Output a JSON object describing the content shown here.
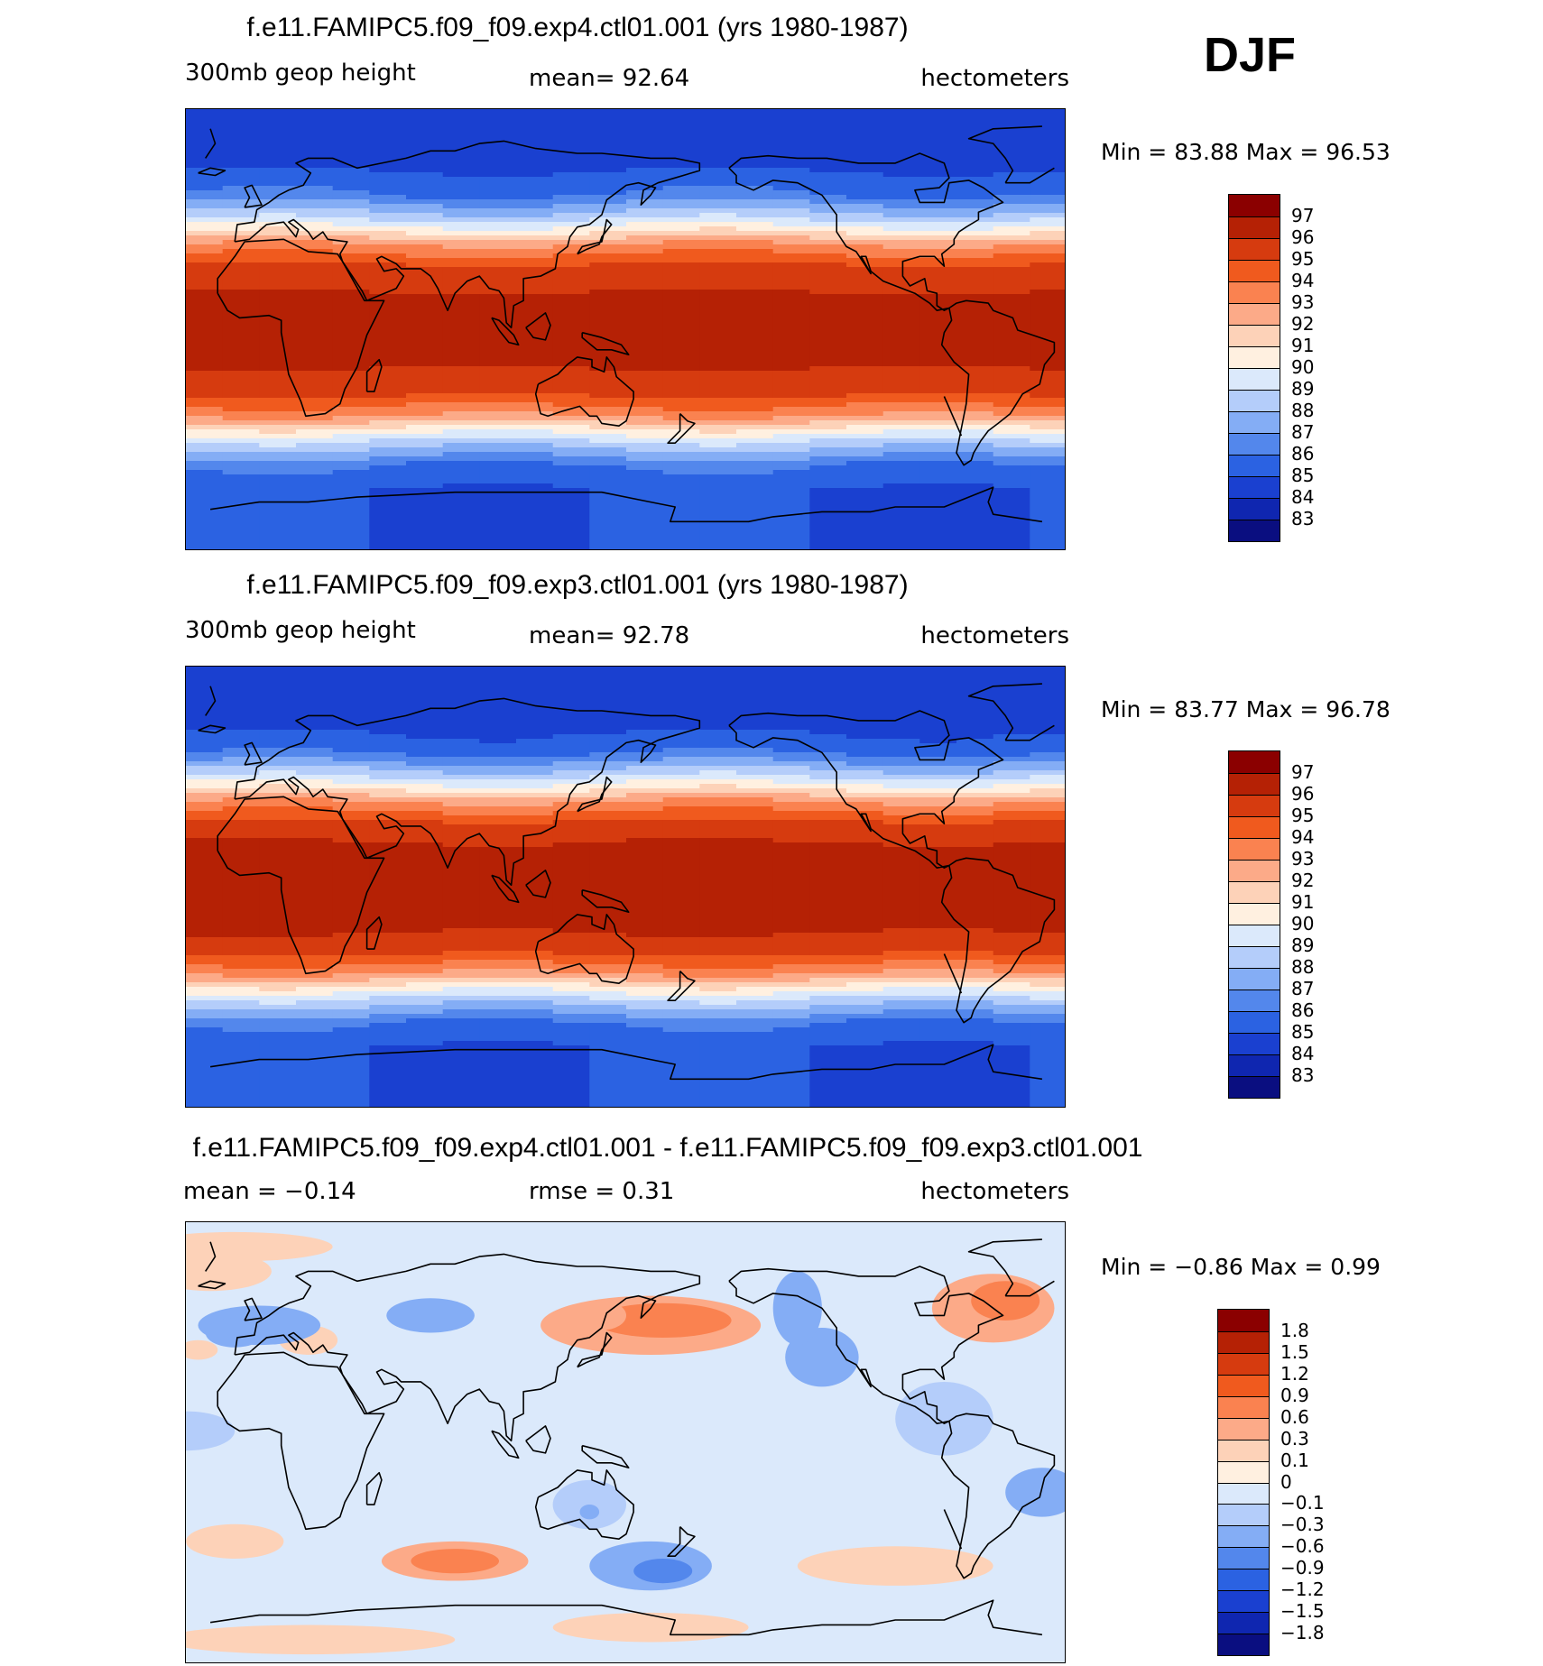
{
  "season": "DJF",
  "panels": [
    {
      "title": "f.e11.FAMIPC5.f09_f09.exp4.ctl01.001 (yrs 1980-1987)",
      "left_text": "300mb geop height",
      "center_text": "mean=   92.64",
      "units": "hectometers",
      "minmax": "Min =   83.88  Max =   96.53"
    },
    {
      "title": "f.e11.FAMIPC5.f09_f09.exp3.ctl01.001 (yrs 1980-1987)",
      "left_text": "300mb geop height",
      "center_text": "mean=   92.78",
      "units": "hectometers",
      "minmax": "Min =   83.77  Max =   96.78"
    },
    {
      "title": "f.e11.FAMIPC5.f09_f09.exp4.ctl01.001 - f.e11.FAMIPC5.f09_f09.exp3.ctl01.001",
      "left_text": "mean =   −0.14",
      "center_text": "rmse =     0.31",
      "units": "hectometers",
      "minmax": "Min =   −0.86  Max =     0.99"
    }
  ],
  "chart_data": [
    {
      "type": "heatmap",
      "title": "f.e11.FAMIPC5.f09_f09.exp4.ctl01.001 (yrs 1980-1987)",
      "variable": "300mb geop height",
      "units": "hectometers",
      "mean": 92.64,
      "min": 83.88,
      "max": 96.53,
      "colorbar_levels": [
        97,
        96,
        95,
        94,
        93,
        92,
        91,
        90,
        89,
        88,
        87,
        86,
        85,
        84,
        83
      ],
      "colorbar_colors": [
        "#8b0000",
        "#b52105",
        "#d63b0f",
        "#f05a1e",
        "#fa8250",
        "#fcaa88",
        "#fdd2b8",
        "#fff0e0",
        "#dbe9fb",
        "#b4cdfa",
        "#84adf5",
        "#5387ec",
        "#2b62e2",
        "#1a40d0",
        "#0f26b0",
        "#0a0e80"
      ],
      "zonal_profile_lat_deg": [
        90,
        70,
        55,
        45,
        35,
        25,
        10,
        0,
        -10,
        -25,
        -35,
        -45,
        -55,
        -65,
        -90
      ],
      "zonal_profile_value": [
        84,
        84.5,
        86,
        89,
        93,
        95.5,
        96.3,
        96.4,
        96.3,
        95.5,
        93,
        89,
        86,
        85,
        85
      ]
    },
    {
      "type": "heatmap",
      "title": "f.e11.FAMIPC5.f09_f09.exp3.ctl01.001 (yrs 1980-1987)",
      "variable": "300mb geop height",
      "units": "hectometers",
      "mean": 92.78,
      "min": 83.77,
      "max": 96.78,
      "colorbar_levels": [
        97,
        96,
        95,
        94,
        93,
        92,
        91,
        90,
        89,
        88,
        87,
        86,
        85,
        84,
        83
      ],
      "colorbar_colors": [
        "#8b0000",
        "#b52105",
        "#d63b0f",
        "#f05a1e",
        "#fa8250",
        "#fcaa88",
        "#fdd2b8",
        "#fff0e0",
        "#dbe9fb",
        "#b4cdfa",
        "#84adf5",
        "#5387ec",
        "#2b62e2",
        "#1a40d0",
        "#0f26b0",
        "#0a0e80"
      ],
      "zonal_profile_lat_deg": [
        90,
        70,
        55,
        45,
        35,
        25,
        10,
        0,
        -10,
        -25,
        -35,
        -45,
        -55,
        -65,
        -90
      ],
      "zonal_profile_value": [
        84,
        84.3,
        85.8,
        89,
        93,
        95.6,
        96.5,
        96.6,
        96.5,
        95.6,
        93,
        89,
        86,
        85,
        85
      ]
    },
    {
      "type": "heatmap",
      "title": "f.e11.FAMIPC5.f09_f09.exp4.ctl01.001 - f.e11.FAMIPC5.f09_f09.exp3.ctl01.001",
      "units": "hectometers",
      "mean": -0.14,
      "rmse": 0.31,
      "min": -0.86,
      "max": 0.99,
      "colorbar_levels": [
        1.8,
        1.5,
        1.2,
        0.9,
        0.6,
        0.3,
        0.1,
        0,
        -0.1,
        -0.3,
        -0.6,
        -0.9,
        -1.2,
        -1.5,
        -1.8
      ],
      "colorbar_level_labels": [
        "1.8",
        "1.5",
        "1.2",
        "0.9",
        "0.6",
        "0.3",
        "0.1",
        "0",
        "−0.1",
        "−0.3",
        "−0.6",
        "−0.9",
        "−1.2",
        "−1.5",
        "−1.8"
      ],
      "colorbar_colors": [
        "#8b0000",
        "#b52105",
        "#d63b0f",
        "#f05a1e",
        "#fa8250",
        "#fcaa88",
        "#fdd2b8",
        "#fff0e0",
        "#dbe9fb",
        "#b4cdfa",
        "#84adf5",
        "#5387ec",
        "#2b62e2",
        "#1a40d0",
        "#0f26b0",
        "#0a0e80"
      ],
      "background_value": -0.1
    }
  ]
}
